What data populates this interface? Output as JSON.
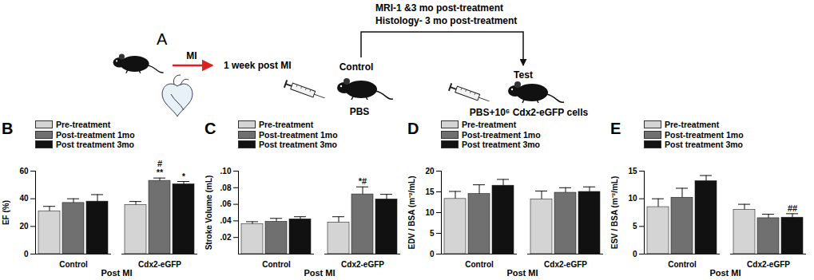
{
  "panel_A": {
    "label": "A",
    "arrow_label": "MI",
    "step": "1 week post MI",
    "schedule": [
      "MRI-1 &3 mo post-treatment",
      "Histology- 3 mo post-treatment"
    ],
    "control": {
      "label": "Control",
      "treatment": "PBS"
    },
    "test": {
      "label": "Test",
      "treatment": "PBS+10⁶ Cdx2-eGFP cells"
    }
  },
  "chart_data": [
    {
      "type": "bar",
      "panel": "B",
      "ylabel": "EF (%)",
      "xlabel": "Post MI",
      "categories": [
        "Control",
        "Cdx2-eGFP"
      ],
      "series": [
        {
          "name": "Pre-treatment",
          "color": "#d4d4d4",
          "values": [
            31,
            35.5
          ],
          "errors": [
            3.5,
            2.5
          ]
        },
        {
          "name": "Post-treatment 1mo",
          "color": "#707070",
          "values": [
            37,
            53
          ],
          "errors": [
            3,
            2
          ]
        },
        {
          "name": "Post treatment 3mo",
          "color": "#111111",
          "values": [
            38,
            50.5
          ],
          "errors": [
            5,
            2
          ]
        }
      ],
      "ylim": [
        0,
        60
      ],
      "yticks": [
        0,
        20,
        40,
        60
      ],
      "annotations": [
        {
          "category": "Cdx2-eGFP",
          "series": "Post-treatment 1mo",
          "text": "#\n**"
        },
        {
          "category": "Cdx2-eGFP",
          "series": "Post treatment 3mo",
          "text": "*"
        }
      ]
    },
    {
      "type": "bar",
      "panel": "C",
      "ylabel": "Stroke Volume (mL)",
      "xlabel": "Post MI",
      "categories": [
        "Control",
        "Cdx2-eGFP"
      ],
      "series": [
        {
          "name": "Pre-treatment",
          "color": "#d4d4d4",
          "values": [
            0.036,
            0.038
          ],
          "errors": [
            0.003,
            0.007
          ]
        },
        {
          "name": "Post-treatment 1mo",
          "color": "#707070",
          "values": [
            0.039,
            0.072
          ],
          "errors": [
            0.004,
            0.009
          ]
        },
        {
          "name": "Post treatment 3mo",
          "color": "#111111",
          "values": [
            0.042,
            0.066
          ],
          "errors": [
            0.003,
            0.006
          ]
        }
      ],
      "ylim": [
        0,
        0.1
      ],
      "yticks": [
        {
          "value": 0.02,
          "label": ".02"
        },
        {
          "value": 0.04,
          "label": ".04"
        },
        {
          "value": 0.06,
          "label": ".06"
        },
        {
          "value": 0.08,
          "label": ".08"
        },
        {
          "value": 0.1,
          "label": ".10"
        }
      ],
      "annotations": [
        {
          "category": "Cdx2-eGFP",
          "series": "Post-treatment 1mo",
          "text": "*#"
        }
      ]
    },
    {
      "type": "bar",
      "panel": "D",
      "ylabel": "EDV / BSA (m⁻²/mL)",
      "xlabel": "Post MI",
      "categories": [
        "Control",
        "Cdx2-eGFP"
      ],
      "series": [
        {
          "name": "Pre-treatment",
          "color": "#d4d4d4",
          "values": [
            13.3,
            13.2
          ],
          "errors": [
            1.8,
            2
          ]
        },
        {
          "name": "Post-treatment 1mo",
          "color": "#707070",
          "values": [
            14.5,
            14.8
          ],
          "errors": [
            2.2,
            1.2
          ]
        },
        {
          "name": "Post treatment 3mo",
          "color": "#111111",
          "values": [
            16.5,
            15
          ],
          "errors": [
            1.5,
            1.2
          ]
        }
      ],
      "ylim": [
        0,
        20
      ],
      "yticks": [
        0,
        5,
        10,
        15,
        20
      ],
      "annotations": []
    },
    {
      "type": "bar",
      "panel": "E",
      "ylabel": "ESV / BSA (m⁻²/mL)",
      "xlabel": "Post MI",
      "categories": [
        "Control",
        "Cdx2-eGFP"
      ],
      "series": [
        {
          "name": "Pre-treatment",
          "color": "#d4d4d4",
          "values": [
            8.5,
            8
          ],
          "errors": [
            1.5,
            1
          ]
        },
        {
          "name": "Post-treatment 1mo",
          "color": "#707070",
          "values": [
            10.2,
            6.5
          ],
          "errors": [
            1.7,
            0.7
          ]
        },
        {
          "name": "Post treatment 3mo",
          "color": "#111111",
          "values": [
            13.2,
            6.6
          ],
          "errors": [
            1,
            0.7
          ]
        }
      ],
      "ylim": [
        0,
        15
      ],
      "yticks": [
        0,
        5,
        10,
        15
      ],
      "annotations": [
        {
          "category": "Cdx2-eGFP",
          "series": "Post treatment 3mo",
          "text": "##"
        }
      ]
    }
  ]
}
